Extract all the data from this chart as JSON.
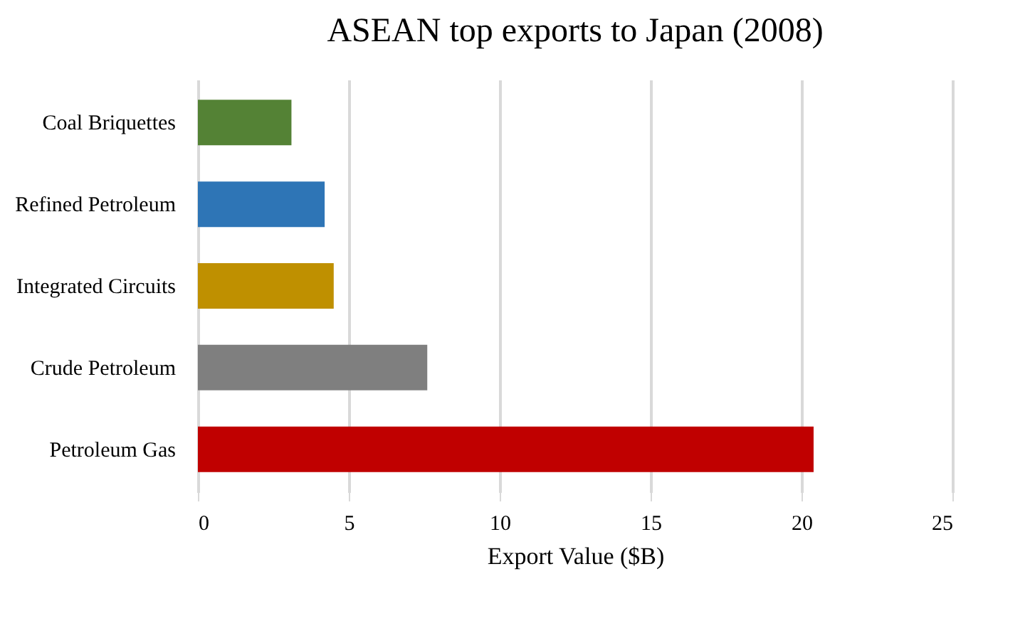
{
  "chart_data": {
    "type": "bar",
    "orientation": "horizontal",
    "title": "ASEAN top exports to Japan (2008)",
    "xlabel": "Export Value ($B)",
    "categories": [
      "Coal Briquettes",
      "Refined Petroleum",
      "Integrated Circuits",
      "Crude Petroleum",
      "Petroleum Gas"
    ],
    "values": [
      3.1,
      4.2,
      4.5,
      7.6,
      20.4
    ],
    "colors": [
      "#548235",
      "#2e75b6",
      "#bf9000",
      "#7f7f7f",
      "#c00000"
    ],
    "xlim": [
      0,
      25
    ],
    "xticks": [
      0,
      5,
      10,
      15,
      20,
      25
    ],
    "grid": "x"
  }
}
